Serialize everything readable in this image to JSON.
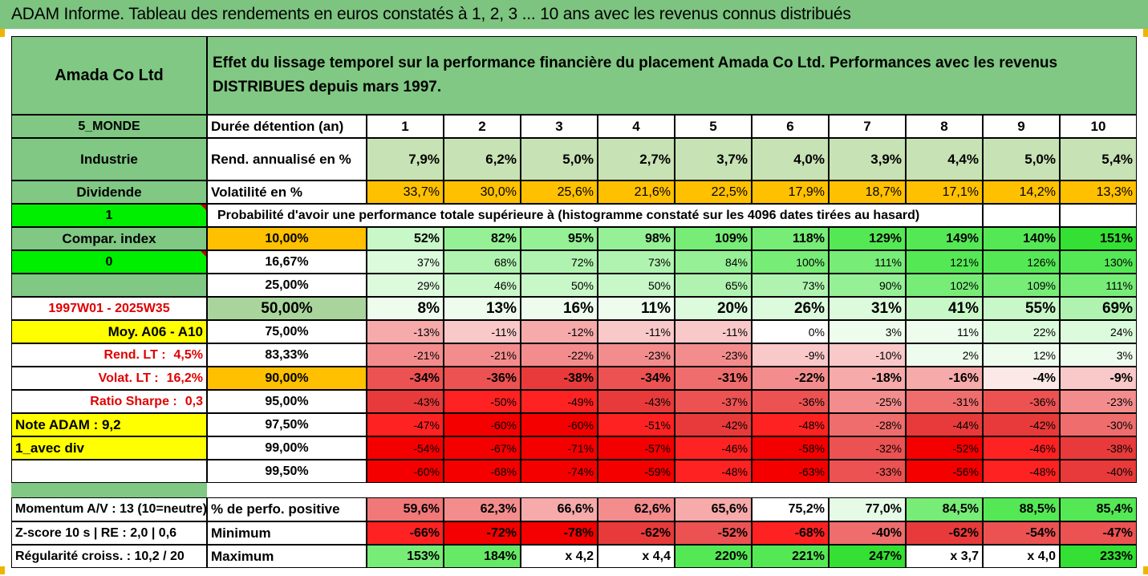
{
  "title": "ADAM Informe. Tableau des rendements en euros constatés à 1, 2, 3 ... 10 ans avec les revenus connus distribués",
  "company": "Amada Co Ltd",
  "description": "Effet du lissage temporel sur la performance financière du placement Amada Co Ltd. Performances avec les revenus DISTRIBUES depuis mars 1997.",
  "colors": {
    "title_bar": "#7cc47f",
    "header_green": "#80c883",
    "light_green_label": "#a9d59c",
    "orange": "#ffc000",
    "bright_green": "#00ee00",
    "yellow": "#ffff00",
    "red_text": "#e00000",
    "rend_cell": "#c7e2b4",
    "dark_red": "#f00000",
    "strong_green": "#4fe64f"
  },
  "left": {
    "region": "5_MONDE",
    "sector": "Industrie",
    "dividend_label": "Dividende",
    "value_1": "1",
    "compar_index": "Compar. index",
    "value_0": "0",
    "period": "1997W01 - 2025W35",
    "moy": "Moy. A06 - A10",
    "rend_lt_label": "Rend. LT :",
    "rend_lt_value": "4,5%",
    "volat_lt_label": "Volat. LT :",
    "volat_lt_value": "16,2%",
    "sharpe_label": "Ratio Sharpe :",
    "sharpe_value": "0,3",
    "note": "Note ADAM : 9,2",
    "avec_div": "1_avec div",
    "momentum": "Momentum A/V : 13 (10=neutre)",
    "zscore": "Z-score 10 s | RE : 2,0 | 0,6",
    "regularite": "Régularité croiss. : 10,2 / 20"
  },
  "header": {
    "label": "Durée détention (an)",
    "years": [
      "1",
      "2",
      "3",
      "4",
      "5",
      "6",
      "7",
      "8",
      "9",
      "10"
    ]
  },
  "rend": {
    "label": "Rend. annualisé en %",
    "values": [
      "7,9%",
      "6,2%",
      "5,0%",
      "2,7%",
      "3,7%",
      "4,0%",
      "3,9%",
      "4,4%",
      "5,0%",
      "5,4%"
    ]
  },
  "vol": {
    "label": "Volatilité en %",
    "values": [
      "33,7%",
      "30,0%",
      "25,6%",
      "21,6%",
      "22,5%",
      "17,9%",
      "18,7%",
      "17,1%",
      "14,2%",
      "13,3%"
    ]
  },
  "prob_title": "Probabilité d'avoir une performance totale supérieure à (histogramme constaté sur les 4096 dates tirées au hasard)",
  "quantiles": [
    {
      "p": "10,00%",
      "v": [
        "52%",
        "82%",
        "95%",
        "98%",
        "109%",
        "118%",
        "129%",
        "149%",
        "140%",
        "151%"
      ]
    },
    {
      "p": "16,67%",
      "v": [
        "37%",
        "68%",
        "72%",
        "73%",
        "84%",
        "100%",
        "111%",
        "121%",
        "126%",
        "130%"
      ]
    },
    {
      "p": "25,00%",
      "v": [
        "29%",
        "46%",
        "50%",
        "50%",
        "65%",
        "73%",
        "90%",
        "102%",
        "109%",
        "111%"
      ]
    },
    {
      "p": "50,00%",
      "v": [
        "8%",
        "13%",
        "16%",
        "11%",
        "20%",
        "26%",
        "31%",
        "41%",
        "55%",
        "69%"
      ]
    },
    {
      "p": "75,00%",
      "v": [
        "-13%",
        "-11%",
        "-12%",
        "-11%",
        "-11%",
        "0%",
        "3%",
        "11%",
        "22%",
        "24%"
      ]
    },
    {
      "p": "83,33%",
      "v": [
        "-21%",
        "-21%",
        "-22%",
        "-23%",
        "-23%",
        "-9%",
        "-10%",
        "2%",
        "12%",
        "3%"
      ]
    },
    {
      "p": "90,00%",
      "v": [
        "-34%",
        "-36%",
        "-38%",
        "-34%",
        "-31%",
        "-22%",
        "-18%",
        "-16%",
        "-4%",
        "-9%"
      ]
    },
    {
      "p": "95,00%",
      "v": [
        "-43%",
        "-50%",
        "-49%",
        "-43%",
        "-37%",
        "-36%",
        "-25%",
        "-31%",
        "-36%",
        "-23%"
      ]
    },
    {
      "p": "97,50%",
      "v": [
        "-47%",
        "-60%",
        "-60%",
        "-51%",
        "-42%",
        "-48%",
        "-28%",
        "-44%",
        "-42%",
        "-30%"
      ]
    },
    {
      "p": "99,00%",
      "v": [
        "-54%",
        "-67%",
        "-71%",
        "-57%",
        "-46%",
        "-58%",
        "-32%",
        "-52%",
        "-46%",
        "-38%"
      ]
    },
    {
      "p": "99,50%",
      "v": [
        "-60%",
        "-68%",
        "-74%",
        "-59%",
        "-48%",
        "-63%",
        "-33%",
        "-56%",
        "-48%",
        "-40%"
      ]
    }
  ],
  "stats": [
    {
      "label": "% de perfo. positive",
      "v": [
        "59,6%",
        "62,3%",
        "66,6%",
        "62,6%",
        "65,6%",
        "75,2%",
        "77,0%",
        "84,5%",
        "88,5%",
        "85,4%"
      ]
    },
    {
      "label": "Minimum",
      "v": [
        "-66%",
        "-72%",
        "-78%",
        "-62%",
        "-52%",
        "-68%",
        "-40%",
        "-62%",
        "-54%",
        "-47%"
      ]
    },
    {
      "label": "Maximum",
      "v": [
        "153%",
        "184%",
        "x 4,2",
        "x 4,4",
        "220%",
        "221%",
        "247%",
        "x 3,7",
        "x 4,0",
        "233%"
      ]
    }
  ]
}
